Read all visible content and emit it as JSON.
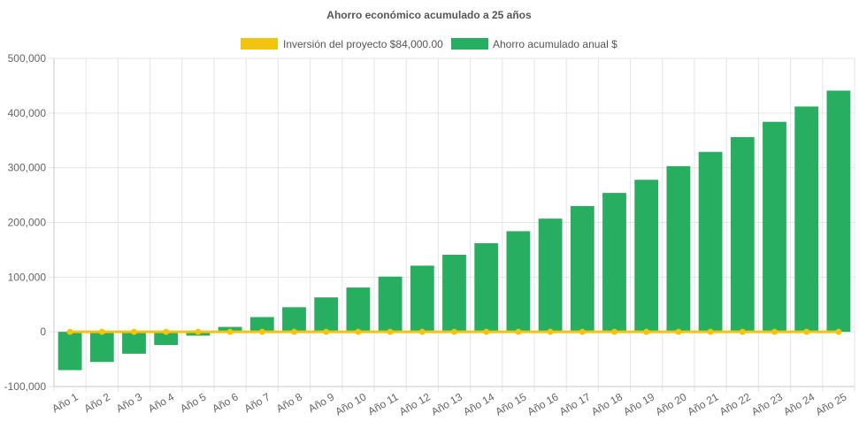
{
  "chart_data": {
    "type": "bar",
    "title": "Ahorro económico acumulado a 25 años",
    "legend_position": "top",
    "grid": true,
    "ylim": [
      -100000,
      500000
    ],
    "y_ticks": [
      500000,
      400000,
      300000,
      200000,
      100000,
      0,
      -100000
    ],
    "y_tick_labels": [
      "500,000",
      "400,000",
      "300,000",
      "200,000",
      "100,000",
      "0",
      "-100,000"
    ],
    "categories": [
      "Año 1",
      "Año 2",
      "Año 3",
      "Año 4",
      "Año 5",
      "Año 6",
      "Año 7",
      "Año 8",
      "Año 9",
      "Año 10",
      "Año 11",
      "Año 12",
      "Año 13",
      "Año 14",
      "Año 15",
      "Año 16",
      "Año 17",
      "Año 18",
      "Año 19",
      "Año 20",
      "Año 21",
      "Año 22",
      "Año 23",
      "Año 24",
      "Año 25"
    ],
    "series": [
      {
        "name": "Inversión del proyecto $84,000.00",
        "kind": "line",
        "color": "#f1c40f",
        "values": [
          0,
          0,
          0,
          0,
          0,
          0,
          0,
          0,
          0,
          0,
          0,
          0,
          0,
          0,
          0,
          0,
          0,
          0,
          0,
          0,
          0,
          0,
          0,
          0,
          0
        ]
      },
      {
        "name": "Ahorro acumulado anual $",
        "kind": "bar",
        "color": "#27ae60",
        "values": [
          -70000,
          -55000,
          -40000,
          -24000,
          -7000,
          9000,
          27000,
          45000,
          63000,
          81000,
          101000,
          121000,
          141000,
          162000,
          184000,
          207000,
          230000,
          254000,
          278000,
          303000,
          329000,
          356000,
          384000,
          412000,
          441000
        ]
      }
    ]
  }
}
